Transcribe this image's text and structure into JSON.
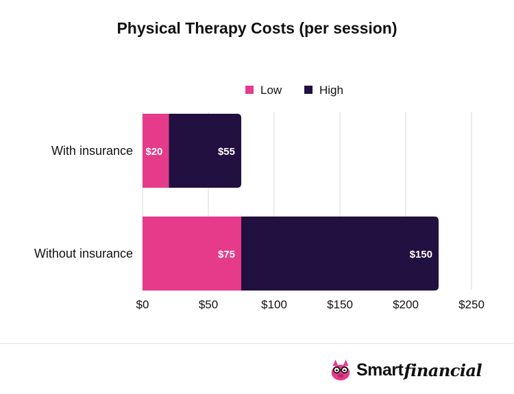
{
  "colors": {
    "low": "#E63B8A",
    "high": "#221040",
    "grid": "#d9d9d9",
    "text": "#111111",
    "label_text": "#ffffff"
  },
  "brand": {
    "name_part1": "Smart",
    "name_part2": "financial",
    "icon": "pig-mascot-icon"
  },
  "chart_data": {
    "type": "bar",
    "orientation": "horizontal",
    "stacked": true,
    "title": "Physical Therapy Costs (per session)",
    "categories": [
      "With insurance",
      "Without insurance"
    ],
    "series": [
      {
        "name": "Low",
        "values": [
          20,
          75
        ],
        "labels": [
          "$20",
          "$75"
        ]
      },
      {
        "name": "High",
        "values": [
          55,
          150
        ],
        "labels": [
          "$55",
          "$150"
        ]
      }
    ],
    "xlim": [
      0,
      250
    ],
    "x_ticks": [
      0,
      50,
      100,
      150,
      200,
      250
    ],
    "x_tick_labels": [
      "$0",
      "$50",
      "$100",
      "$150",
      "$200",
      "$250"
    ],
    "grid": true,
    "legend_position": "top"
  }
}
